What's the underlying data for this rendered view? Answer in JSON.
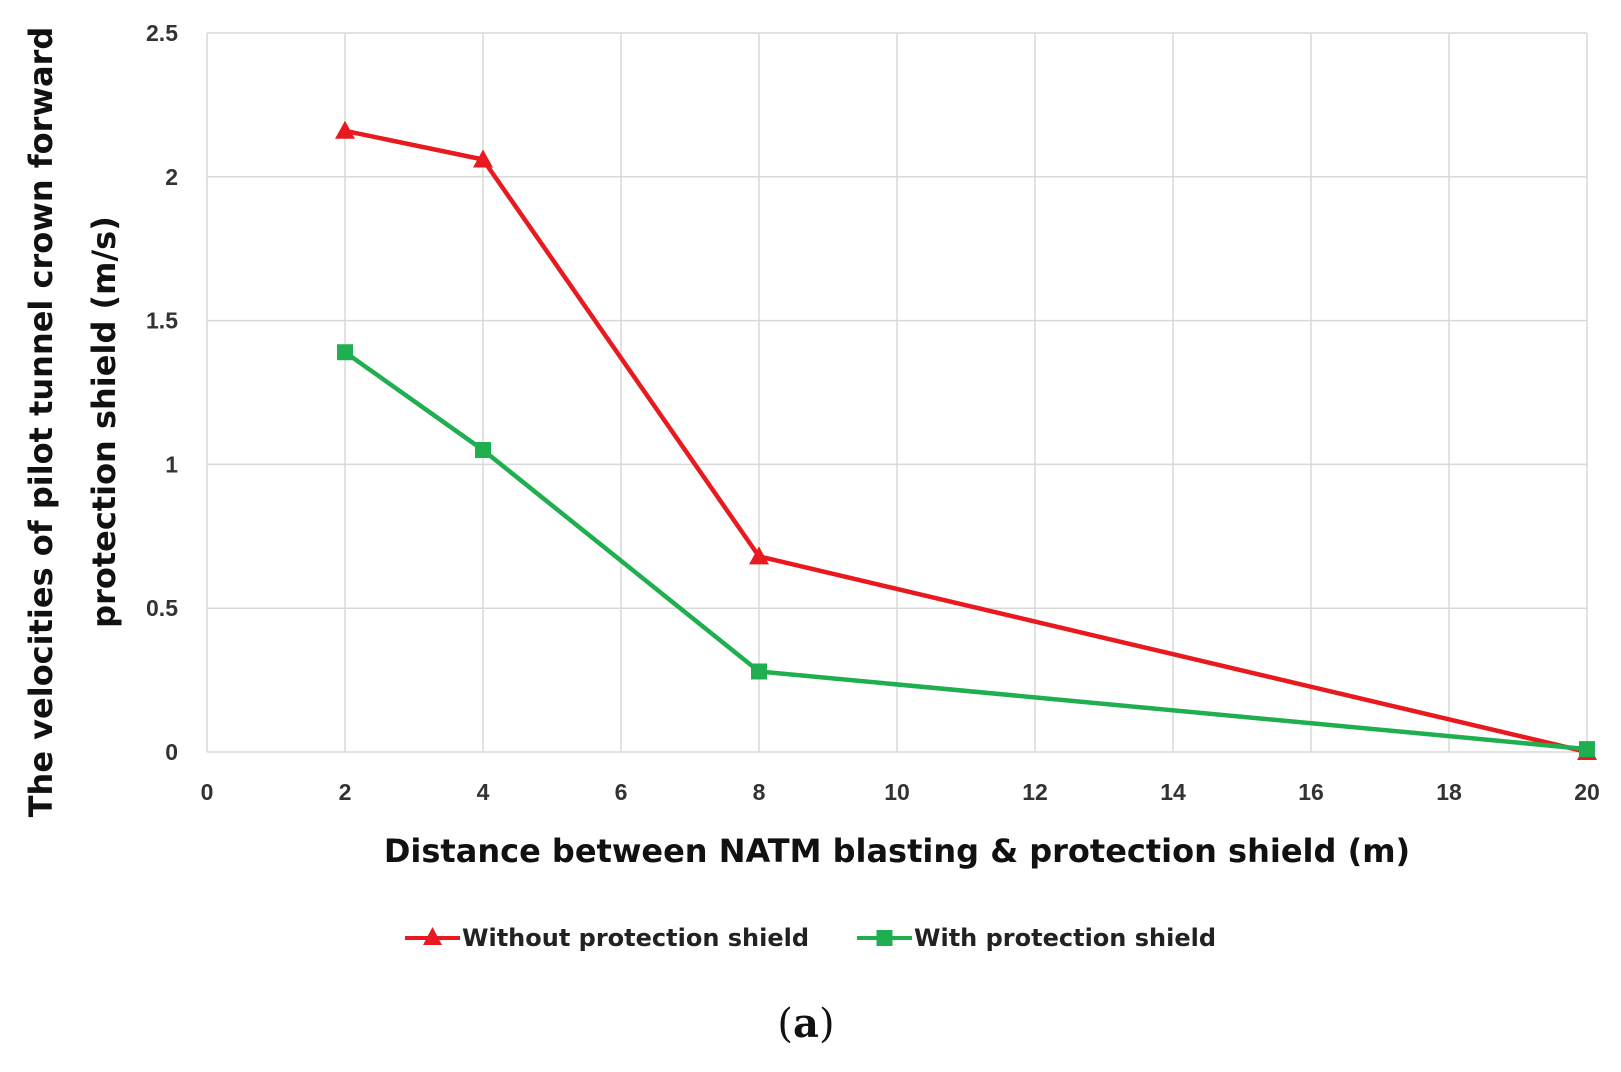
{
  "chart_data": {
    "type": "line",
    "title": "",
    "xlabel": "Distance between NATM blasting & protection shield (m)",
    "ylabel_lines": [
      "The velocities of pilot tunnel crown forward",
      "protection shield (m/s)"
    ],
    "xlim": [
      0,
      20
    ],
    "ylim": [
      0,
      2.5
    ],
    "x_ticks": [
      0,
      2,
      4,
      6,
      8,
      10,
      12,
      14,
      16,
      18,
      20
    ],
    "x_tick_labels": [
      "0",
      "2",
      "4",
      "6",
      "8",
      "10",
      "12",
      "14",
      "16",
      "18",
      "20"
    ],
    "y_ticks": [
      0,
      0.5,
      1,
      1.5,
      2,
      2.5
    ],
    "y_tick_labels": [
      "0",
      "0.5",
      "1",
      "1.5",
      "2",
      "2.5"
    ],
    "grid": true,
    "legend_position": "bottom",
    "series": [
      {
        "name": "Without protection shield",
        "color": "#e8191f",
        "marker": "triangle",
        "x": [
          2,
          4,
          8,
          20
        ],
        "values": [
          2.16,
          2.06,
          0.68,
          0.0
        ]
      },
      {
        "name": "With protection shield",
        "color": "#1fae50",
        "marker": "square",
        "x": [
          2,
          4,
          8,
          20
        ],
        "values": [
          1.39,
          1.05,
          0.28,
          0.01
        ]
      }
    ]
  },
  "caption": {
    "open": "(",
    "letter": "a",
    "close": ")"
  }
}
